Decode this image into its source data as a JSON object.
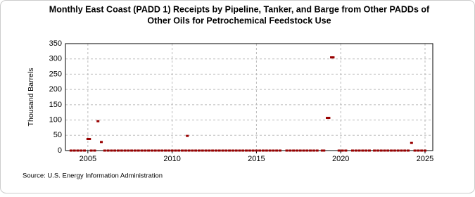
{
  "chart_data": {
    "type": "scatter",
    "title": [
      "Monthly East Coast (PADD 1) Receipts by Pipeline, Tanker, and Barge from Other PADDs of",
      "Other Oils for Petrochemical Feedstock Use"
    ],
    "y_label": "Thousand Barrels",
    "source": "Source: U.S. Energy Information Administration",
    "xlim": [
      2003.67,
      2025.46
    ],
    "xticks": [
      2005,
      2010,
      2015,
      2020,
      2025
    ],
    "ylim": [
      0,
      350
    ],
    "yticks": [
      0,
      50,
      100,
      150,
      200,
      250,
      300,
      350
    ],
    "grid": true,
    "color": "#990000",
    "x": [
      2004.0,
      2004.2,
      2004.4,
      2004.6,
      2004.8,
      2005.0,
      2005.1,
      2005.2,
      2005.4,
      2005.6,
      2005.8,
      2006.0,
      2006.2,
      2006.4,
      2006.6,
      2006.8,
      2007.0,
      2007.2,
      2007.4,
      2007.6,
      2007.8,
      2008.0,
      2008.2,
      2008.4,
      2008.6,
      2008.8,
      2009.0,
      2009.2,
      2009.4,
      2009.6,
      2009.8,
      2010.0,
      2010.2,
      2010.4,
      2010.6,
      2010.8,
      2010.9,
      2011.0,
      2011.2,
      2011.4,
      2011.6,
      2011.8,
      2012.0,
      2012.2,
      2012.4,
      2012.6,
      2012.8,
      2013.0,
      2013.2,
      2013.4,
      2013.6,
      2013.8,
      2014.0,
      2014.2,
      2014.4,
      2014.6,
      2014.8,
      2015.0,
      2015.2,
      2015.4,
      2015.6,
      2015.8,
      2016.0,
      2016.2,
      2016.4,
      2016.8,
      2017.0,
      2017.2,
      2017.4,
      2017.6,
      2017.8,
      2018.0,
      2018.2,
      2018.4,
      2018.6,
      2018.9,
      2019.0,
      2019.2,
      2019.3,
      2019.45,
      2019.55,
      2019.9,
      2020.1,
      2020.3,
      2020.7,
      2020.9,
      2021.1,
      2021.3,
      2021.5,
      2021.7,
      2022.0,
      2022.2,
      2022.4,
      2022.6,
      2022.8,
      2023.0,
      2023.2,
      2023.4,
      2023.6,
      2023.8,
      2024.0,
      2024.2,
      2024.4,
      2024.6,
      2024.8,
      2025.0
    ],
    "values": [
      0,
      0,
      0,
      0,
      0,
      38,
      38,
      0,
      0,
      96,
      28,
      0,
      0,
      0,
      0,
      0,
      0,
      0,
      0,
      0,
      0,
      0,
      0,
      0,
      0,
      0,
      0,
      0,
      0,
      0,
      0,
      0,
      0,
      0,
      0,
      0,
      48,
      0,
      0,
      0,
      0,
      0,
      0,
      0,
      0,
      0,
      0,
      0,
      0,
      0,
      0,
      0,
      0,
      0,
      0,
      0,
      0,
      0,
      0,
      0,
      0,
      0,
      0,
      0,
      0,
      0,
      0,
      0,
      0,
      0,
      0,
      0,
      0,
      0,
      0,
      0,
      0,
      107,
      107,
      305,
      305,
      0,
      0,
      0,
      0,
      0,
      0,
      0,
      0,
      0,
      0,
      0,
      0,
      0,
      0,
      0,
      0,
      0,
      0,
      0,
      0,
      25,
      0,
      0,
      0,
      0
    ]
  }
}
